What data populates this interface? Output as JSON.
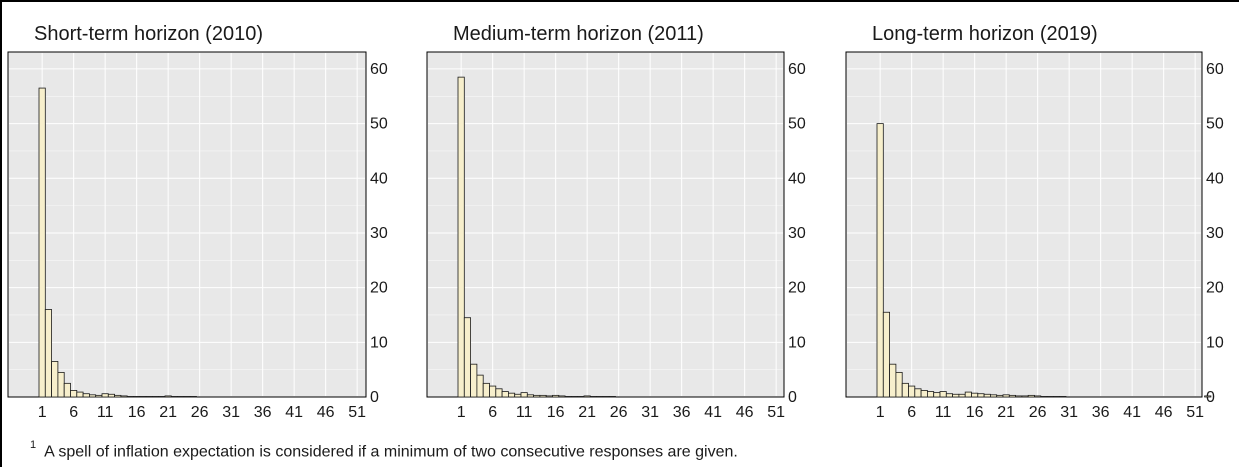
{
  "footnote": {
    "marker": "1",
    "text": "A spell of inflation expectation is considered if a minimum of two consecutive responses are given."
  },
  "style": {
    "plot_bg": "#e8e8e8",
    "grid": "#ffffff",
    "bar_fill": "#f7efcc",
    "bar_stroke": "#1a1a1a"
  },
  "chart_data": [
    {
      "type": "bar",
      "title": "Short-term horizon (2010)",
      "x_ticks": [
        "1",
        "6",
        "11",
        "16",
        "21",
        "26",
        "31",
        "36",
        "41",
        "46",
        "51"
      ],
      "y_ticks": [
        "0",
        "10",
        "20",
        "30",
        "40",
        "50",
        "60"
      ],
      "ylim": [
        0,
        62
      ],
      "x_range": [
        1,
        60
      ],
      "grid": true,
      "y_axis_side": "right",
      "x": [
        1,
        2,
        3,
        4,
        5,
        6,
        7,
        8,
        9,
        10,
        11,
        12,
        13,
        14,
        15,
        16,
        17,
        18,
        19,
        20,
        21,
        22,
        23,
        24,
        25
      ],
      "values": [
        56.5,
        16,
        6.5,
        4.5,
        2.5,
        1.2,
        0.9,
        0.6,
        0.4,
        0.3,
        0.6,
        0.5,
        0.3,
        0.2,
        0.1,
        0.1,
        0.1,
        0.1,
        0.1,
        0.1,
        0.2,
        0.1,
        0.1,
        0.1,
        0.1
      ]
    },
    {
      "type": "bar",
      "title": "Medium-term horizon (2011)",
      "x_ticks": [
        "1",
        "6",
        "11",
        "16",
        "21",
        "26",
        "31",
        "36",
        "41",
        "46",
        "51"
      ],
      "y_ticks": [
        "0",
        "10",
        "20",
        "30",
        "40",
        "50",
        "60"
      ],
      "ylim": [
        0,
        62
      ],
      "x_range": [
        1,
        60
      ],
      "grid": true,
      "y_axis_side": "right",
      "x": [
        1,
        2,
        3,
        4,
        5,
        6,
        7,
        8,
        9,
        10,
        11,
        12,
        13,
        14,
        15,
        16,
        17,
        18,
        19,
        20,
        21,
        22,
        23,
        24,
        25
      ],
      "values": [
        58.5,
        14.5,
        6,
        4,
        2.5,
        2,
        1.5,
        1,
        0.7,
        0.5,
        0.8,
        0.4,
        0.3,
        0.3,
        0.2,
        0.3,
        0.2,
        0.1,
        0.1,
        0.1,
        0.2,
        0.1,
        0.1,
        0.1,
        0.1
      ]
    },
    {
      "type": "bar",
      "title": "Long-term horizon (2019)",
      "x_ticks": [
        "1",
        "6",
        "11",
        "16",
        "21",
        "26",
        "31",
        "36",
        "41",
        "46",
        "51"
      ],
      "y_ticks": [
        "0",
        "10",
        "20",
        "30",
        "40",
        "50",
        "60"
      ],
      "ylim": [
        0,
        62
      ],
      "x_range": [
        1,
        60
      ],
      "grid": true,
      "y_axis_side": "right",
      "x": [
        1,
        2,
        3,
        4,
        5,
        6,
        7,
        8,
        9,
        10,
        11,
        12,
        13,
        14,
        15,
        16,
        17,
        18,
        19,
        20,
        21,
        22,
        23,
        24,
        25,
        26,
        27,
        28,
        29,
        30,
        53
      ],
      "values": [
        50,
        15.5,
        6,
        4.5,
        2.5,
        2,
        1.5,
        1.2,
        1,
        0.8,
        1,
        0.6,
        0.5,
        0.5,
        0.9,
        0.7,
        0.6,
        0.5,
        0.4,
        0.3,
        0.4,
        0.3,
        0.2,
        0.2,
        0.3,
        0.2,
        0.1,
        0.1,
        0.1,
        0.1,
        0.2
      ]
    }
  ]
}
